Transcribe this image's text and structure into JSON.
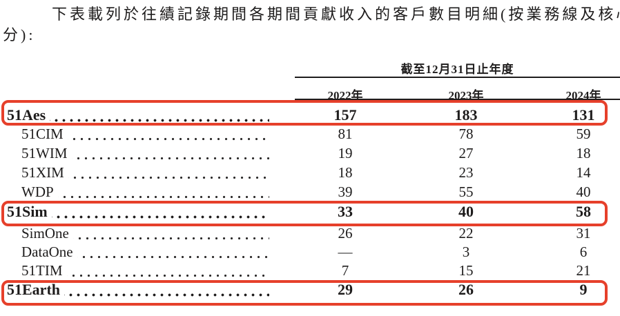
{
  "intro": {
    "line1": "下表載列於往績記錄期間各期間貢獻收入的客戶數目明細(按業務線及核心產品",
    "line2": "分):"
  },
  "table": {
    "period_header": "截至12月31日止年度",
    "year_columns": [
      "2022年",
      "2023年",
      "2024年"
    ],
    "rows": [
      {
        "label": "51Aes",
        "level": "section",
        "highlighted": true,
        "values": [
          "157",
          "183",
          "131"
        ]
      },
      {
        "label": "51CIM",
        "level": "sub",
        "highlighted": false,
        "values": [
          "81",
          "78",
          "59"
        ]
      },
      {
        "label": "51WIM",
        "level": "sub",
        "highlighted": false,
        "values": [
          "19",
          "27",
          "18"
        ]
      },
      {
        "label": "51XIM",
        "level": "sub",
        "highlighted": false,
        "values": [
          "18",
          "23",
          "14"
        ]
      },
      {
        "label": "WDP",
        "level": "sub",
        "highlighted": false,
        "values": [
          "39",
          "55",
          "40"
        ]
      },
      {
        "label": "51Sim",
        "level": "section",
        "highlighted": true,
        "values": [
          "33",
          "40",
          "58"
        ]
      },
      {
        "label": "SimOne",
        "level": "sub",
        "highlighted": false,
        "values": [
          "26",
          "22",
          "31"
        ]
      },
      {
        "label": "DataOne",
        "level": "sub",
        "highlighted": false,
        "values": [
          "—",
          "3",
          "6"
        ]
      },
      {
        "label": "51TIM",
        "level": "sub",
        "highlighted": false,
        "values": [
          "7",
          "15",
          "21"
        ]
      },
      {
        "label": "51Earth",
        "level": "section",
        "highlighted": true,
        "values": [
          "29",
          "26",
          "9"
        ]
      }
    ]
  },
  "annotations": {
    "highlight_color": "#e6402b",
    "highlighted_rows": [
      "51Aes",
      "51Sim",
      "51Earth"
    ]
  }
}
